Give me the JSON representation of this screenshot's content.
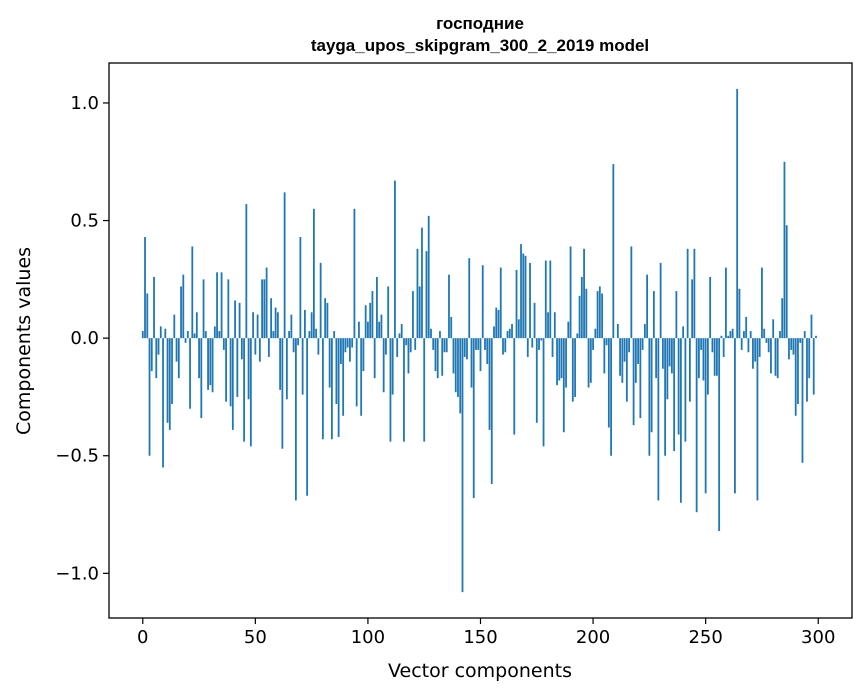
{
  "chart_data": {
    "type": "bar",
    "title": "господние",
    "subtitle": "tayga_upos_skipgram_300_2_2019 model",
    "xlabel": "Vector components",
    "ylabel": "Components values",
    "xlim": [
      -15,
      315
    ],
    "ylim": [
      -1.19,
      1.17
    ],
    "xticks": [
      0,
      50,
      100,
      150,
      200,
      250,
      300
    ],
    "yticks": [
      -1.0,
      -0.5,
      0.0,
      0.5,
      1.0
    ],
    "xtick_labels": [
      "0",
      "50",
      "100",
      "150",
      "200",
      "250",
      "300"
    ],
    "ytick_labels": [
      "−1.0",
      "−0.5",
      "0.0",
      "0.5",
      "1.0"
    ],
    "grid": false,
    "bar_color": "#1f77b4",
    "values": [
      0.03,
      0.43,
      0.19,
      -0.5,
      -0.14,
      0.26,
      -0.17,
      -0.07,
      0.05,
      -0.55,
      0.04,
      -0.36,
      -0.39,
      -0.28,
      0.1,
      -0.1,
      -0.17,
      0.22,
      0.27,
      -0.02,
      0.03,
      -0.3,
      0.39,
      0.02,
      0.11,
      -0.17,
      -0.34,
      0.25,
      0.03,
      -0.22,
      -0.2,
      -0.23,
      0.05,
      0.28,
      0.03,
      0.28,
      -0.05,
      -0.27,
      0.25,
      -0.29,
      -0.39,
      0.16,
      -0.25,
      0.15,
      -0.09,
      -0.44,
      0.57,
      -0.26,
      -0.46,
      0.11,
      -0.07,
      0.1,
      -0.1,
      0.25,
      0.25,
      0.3,
      -0.08,
      0.17,
      0.03,
      0.13,
      0.11,
      -0.22,
      -0.47,
      0.62,
      -0.26,
      0.03,
      0.1,
      -0.06,
      -0.69,
      -0.03,
      0.43,
      -0.24,
      0.12,
      -0.67,
      0.03,
      0.11,
      0.55,
      0.04,
      -0.07,
      0.32,
      -0.43,
      0.17,
      0.15,
      -0.21,
      -0.43,
      0.03,
      -0.28,
      -0.42,
      -0.11,
      -0.33,
      -0.06,
      -0.04,
      -0.1,
      -0.04,
      0.55,
      -0.29,
      0.07,
      -0.33,
      -0.14,
      0.14,
      0.07,
      0.15,
      0.2,
      -0.17,
      0.26,
      0.07,
      0.1,
      -0.23,
      -0.07,
      0.22,
      -0.44,
      -0.24,
      0.67,
      -0.08,
      0.02,
      0.06,
      -0.44,
      -0.03,
      -0.15,
      -0.06,
      0.2,
      -0.05,
      0.38,
      0.22,
      0.47,
      -0.44,
      0.37,
      0.52,
      0.04,
      -0.05,
      -0.14,
      -0.17,
      0.03,
      -0.16,
      -0.06,
      -0.06,
      0.27,
      0.09,
      -0.15,
      -0.23,
      -0.25,
      -0.32,
      -1.08,
      -0.08,
      -0.09,
      0.34,
      -0.21,
      -0.68,
      -0.05,
      -0.05,
      -0.14,
      0.31,
      -0.05,
      -0.11,
      -0.39,
      -0.62,
      0.05,
      0.13,
      0.12,
      0.3,
      -0.07,
      -0.06,
      0.03,
      0.04,
      0.06,
      -0.41,
      0.29,
      0.08,
      0.4,
      0.36,
      0.35,
      -0.08,
      0.32,
      -0.04,
      0.15,
      -0.36,
      -0.05,
      -0.01,
      -0.46,
      0.33,
      0.11,
      0.33,
      -0.08,
      0.11,
      -0.2,
      -0.18,
      -0.17,
      -0.4,
      -0.21,
      0.07,
      0.39,
      -0.27,
      -0.25,
      0.02,
      0.18,
      0.26,
      0.38,
      0.21,
      -0.21,
      -0.19,
      -0.05,
      0.04,
      0.2,
      0.22,
      0.19,
      -0.15,
      -0.03,
      -0.38,
      -0.5,
      0.74,
      0.0,
      0.06,
      -0.16,
      -0.19,
      -0.1,
      -0.27,
      -0.06,
      0.39,
      -0.37,
      -0.19,
      -0.11,
      -0.34,
      -0.05,
      0.06,
      0.27,
      -0.5,
      -0.4,
      0.2,
      -0.17,
      -0.69,
      0.32,
      -0.13,
      -0.5,
      -0.26,
      -0.12,
      -0.15,
      -0.48,
      0.2,
      -0.41,
      -0.7,
      0.05,
      -0.44,
      0.38,
      -0.27,
      0.25,
      0.38,
      -0.74,
      -0.17,
      -0.05,
      -0.18,
      -0.66,
      -0.24,
      0.26,
      -0.06,
      -0.16,
      -0.16,
      -0.82,
      0.01,
      -0.08,
      0.3,
      0.01,
      0.03,
      0.04,
      -0.66,
      1.06,
      0.21,
      -0.05,
      0.03,
      0.09,
      -0.06,
      0.03,
      -0.13,
      -0.1,
      -0.69,
      -0.08,
      0.3,
      0.04,
      -0.02,
      -0.06,
      -0.15,
      0.08,
      -0.16,
      -0.17,
      0.03,
      0.17,
      0.75,
      0.48,
      -0.09,
      -0.05,
      -0.07,
      -0.33,
      -0.28,
      -0.02,
      -0.53,
      0.03,
      -0.27,
      -0.17,
      0.1,
      -0.24,
      0.01
    ]
  }
}
